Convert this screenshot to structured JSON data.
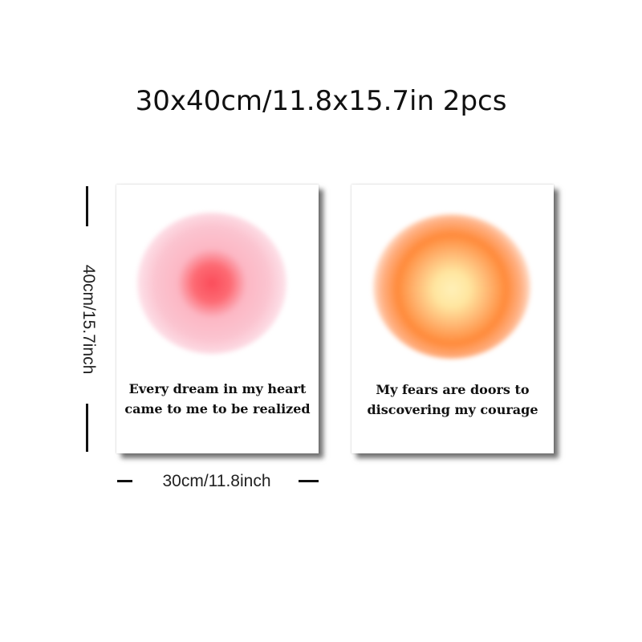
{
  "title": "30x40cm/11.8x15.7in 2pcs",
  "posters": [
    {
      "quote": "Every dream in my heart came to me to be realized",
      "glow_colors": {
        "center": "#fb4c5a",
        "outer": "#fbc4d0"
      }
    },
    {
      "quote": "My fears are doors to discovering my courage",
      "glow_colors": {
        "center": "#fff0b8",
        "outer": "#ff8a3a"
      }
    }
  ],
  "dimensions": {
    "height_label": "40cm/15.7inch",
    "width_label": "30cm/11.8inch"
  }
}
